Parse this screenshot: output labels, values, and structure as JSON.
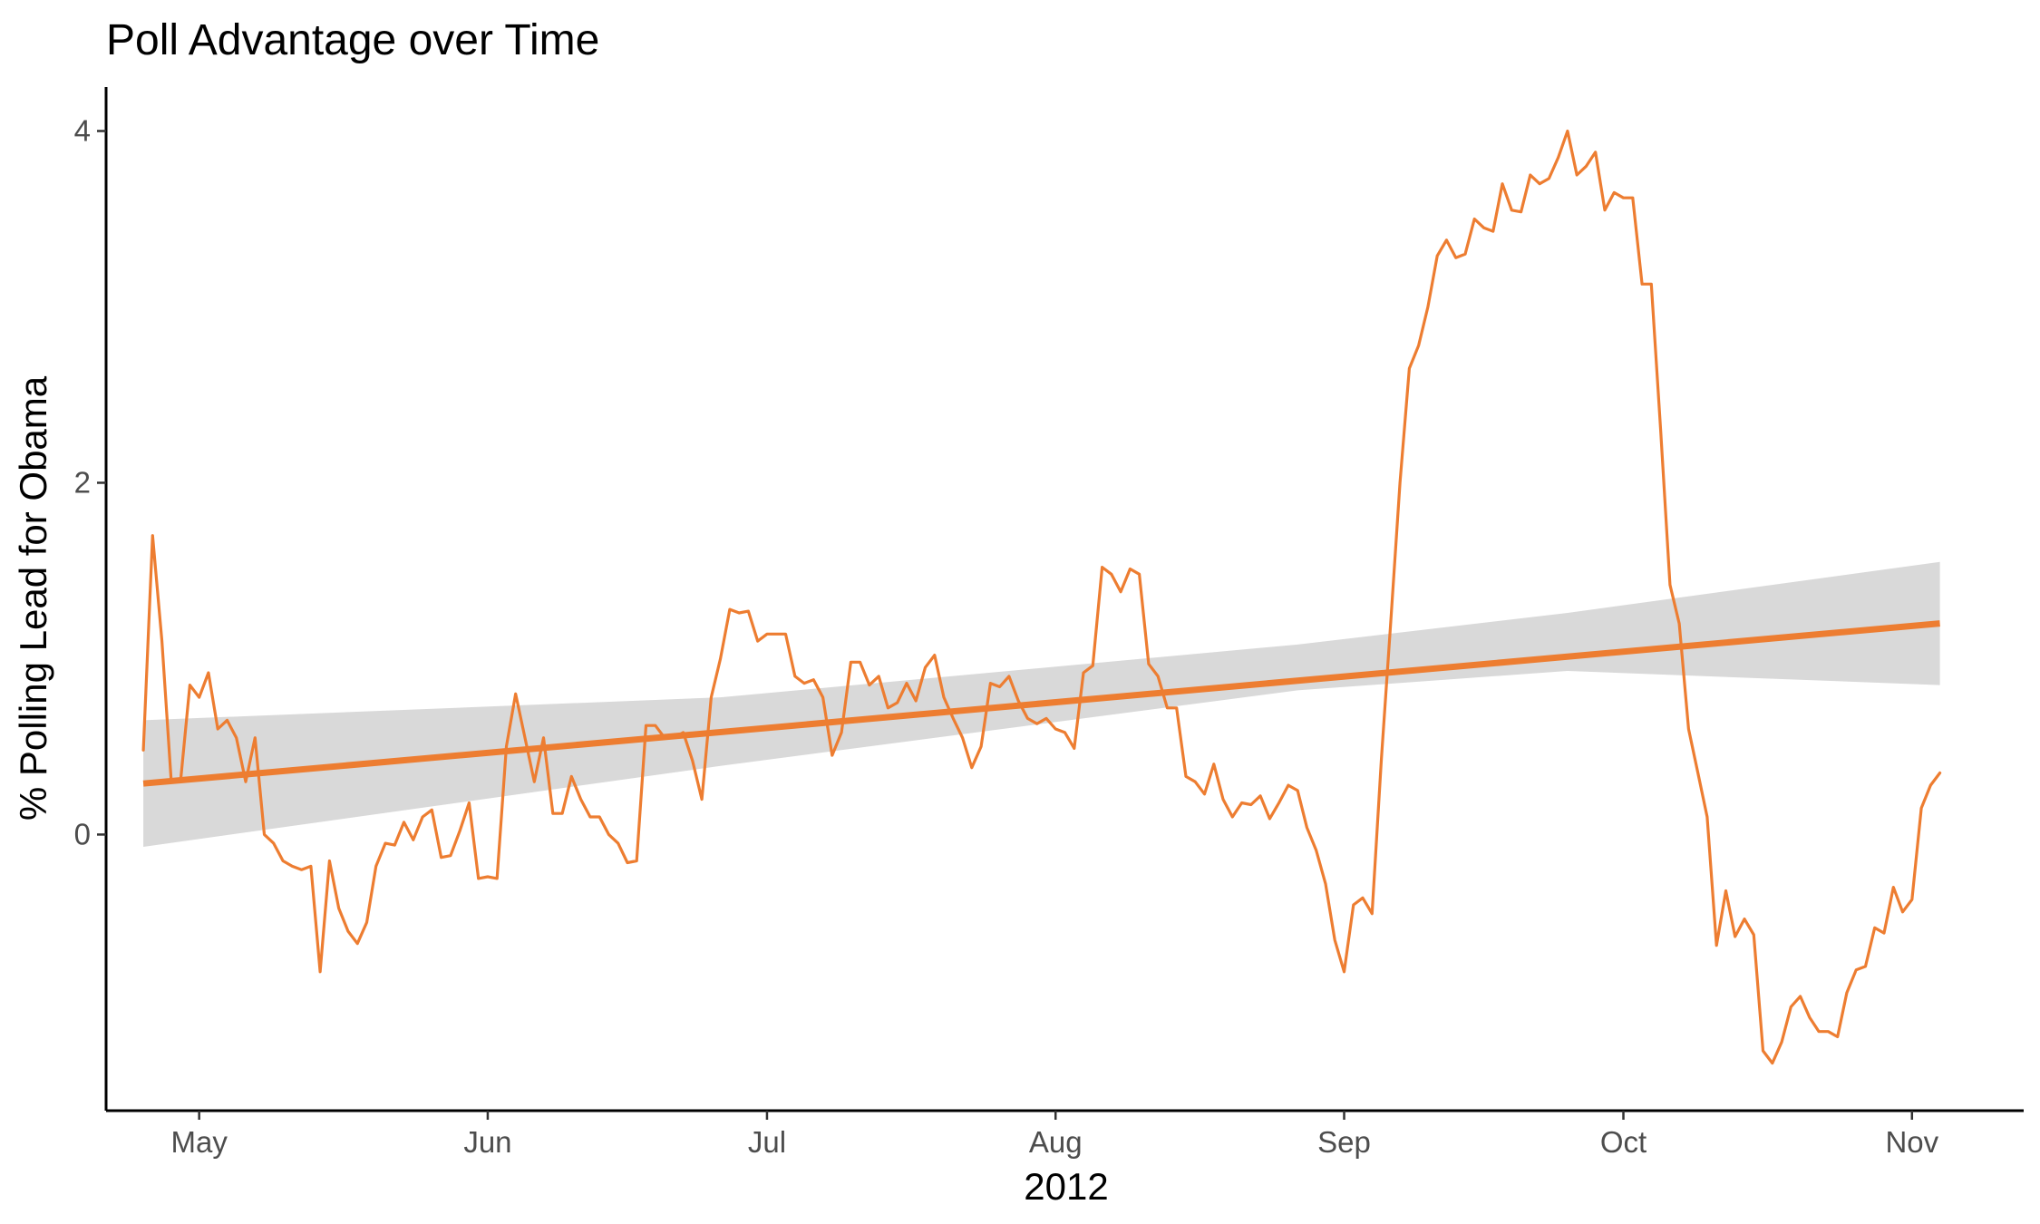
{
  "chart_data": {
    "type": "line",
    "title": "Poll Advantage over Time",
    "xlabel": "2012",
    "ylabel": "% Polling Lead for Obama",
    "x_ticks": [
      {
        "date": "2012-05-01",
        "label": "May"
      },
      {
        "date": "2012-06-01",
        "label": "Jun"
      },
      {
        "date": "2012-07-01",
        "label": "Jul"
      },
      {
        "date": "2012-08-01",
        "label": "Aug"
      },
      {
        "date": "2012-09-01",
        "label": "Sep"
      },
      {
        "date": "2012-10-01",
        "label": "Oct"
      },
      {
        "date": "2012-11-01",
        "label": "Nov"
      }
    ],
    "y_ticks": [
      0,
      2,
      4
    ],
    "xlim": [
      "2012-04-21",
      "2012-11-13"
    ],
    "ylim": [
      -1.57,
      4.25
    ],
    "grid": false,
    "legend": "none",
    "colors": {
      "line": "#ED7D31",
      "trend": "#ED7D31",
      "ribbon": "#D9D9D9"
    },
    "series": [
      {
        "type": "line",
        "points": [
          [
            "2012-04-25",
            0.48
          ],
          [
            "2012-04-26",
            1.7
          ],
          [
            "2012-04-27",
            1.1
          ],
          [
            "2012-04-28",
            0.3
          ],
          [
            "2012-04-29",
            0.3
          ],
          [
            "2012-04-30",
            0.85
          ],
          [
            "2012-05-01",
            0.78
          ],
          [
            "2012-05-02",
            0.92
          ],
          [
            "2012-05-03",
            0.6
          ],
          [
            "2012-05-04",
            0.65
          ],
          [
            "2012-05-05",
            0.55
          ],
          [
            "2012-05-06",
            0.3
          ],
          [
            "2012-05-07",
            0.55
          ],
          [
            "2012-05-08",
            0.0
          ],
          [
            "2012-05-09",
            -0.05
          ],
          [
            "2012-05-10",
            -0.15
          ],
          [
            "2012-05-11",
            -0.18
          ],
          [
            "2012-05-12",
            -0.2
          ],
          [
            "2012-05-13",
            -0.18
          ],
          [
            "2012-05-14",
            -0.78
          ],
          [
            "2012-05-15",
            -0.15
          ],
          [
            "2012-05-16",
            -0.42
          ],
          [
            "2012-05-17",
            -0.55
          ],
          [
            "2012-05-18",
            -0.62
          ],
          [
            "2012-05-19",
            -0.5
          ],
          [
            "2012-05-20",
            -0.18
          ],
          [
            "2012-05-21",
            -0.05
          ],
          [
            "2012-05-22",
            -0.06
          ],
          [
            "2012-05-23",
            0.07
          ],
          [
            "2012-05-24",
            -0.03
          ],
          [
            "2012-05-25",
            0.1
          ],
          [
            "2012-05-26",
            0.14
          ],
          [
            "2012-05-27",
            -0.13
          ],
          [
            "2012-05-28",
            -0.12
          ],
          [
            "2012-05-29",
            0.02
          ],
          [
            "2012-05-30",
            0.18
          ],
          [
            "2012-05-31",
            -0.25
          ],
          [
            "2012-06-01",
            -0.24
          ],
          [
            "2012-06-02",
            -0.25
          ],
          [
            "2012-06-03",
            0.5
          ],
          [
            "2012-06-04",
            0.8
          ],
          [
            "2012-06-05",
            0.55
          ],
          [
            "2012-06-06",
            0.3
          ],
          [
            "2012-06-07",
            0.55
          ],
          [
            "2012-06-08",
            0.12
          ],
          [
            "2012-06-09",
            0.12
          ],
          [
            "2012-06-10",
            0.33
          ],
          [
            "2012-06-11",
            0.2
          ],
          [
            "2012-06-12",
            0.1
          ],
          [
            "2012-06-13",
            0.1
          ],
          [
            "2012-06-14",
            0.0
          ],
          [
            "2012-06-15",
            -0.05
          ],
          [
            "2012-06-16",
            -0.16
          ],
          [
            "2012-06-17",
            -0.15
          ],
          [
            "2012-06-18",
            0.62
          ],
          [
            "2012-06-19",
            0.62
          ],
          [
            "2012-06-20",
            0.55
          ],
          [
            "2012-06-21",
            0.55
          ],
          [
            "2012-06-22",
            0.58
          ],
          [
            "2012-06-23",
            0.42
          ],
          [
            "2012-06-24",
            0.2
          ],
          [
            "2012-06-25",
            0.78
          ],
          [
            "2012-06-26",
            1.0
          ],
          [
            "2012-06-27",
            1.28
          ],
          [
            "2012-06-28",
            1.26
          ],
          [
            "2012-06-29",
            1.27
          ],
          [
            "2012-06-30",
            1.1
          ],
          [
            "2012-07-01",
            1.14
          ],
          [
            "2012-07-02",
            1.14
          ],
          [
            "2012-07-03",
            1.14
          ],
          [
            "2012-07-04",
            0.9
          ],
          [
            "2012-07-05",
            0.86
          ],
          [
            "2012-07-06",
            0.88
          ],
          [
            "2012-07-07",
            0.78
          ],
          [
            "2012-07-08",
            0.45
          ],
          [
            "2012-07-09",
            0.58
          ],
          [
            "2012-07-10",
            0.98
          ],
          [
            "2012-07-11",
            0.98
          ],
          [
            "2012-07-12",
            0.85
          ],
          [
            "2012-07-13",
            0.9
          ],
          [
            "2012-07-14",
            0.72
          ],
          [
            "2012-07-15",
            0.75
          ],
          [
            "2012-07-16",
            0.86
          ],
          [
            "2012-07-17",
            0.76
          ],
          [
            "2012-07-18",
            0.95
          ],
          [
            "2012-07-19",
            1.02
          ],
          [
            "2012-07-20",
            0.78
          ],
          [
            "2012-07-21",
            0.66
          ],
          [
            "2012-07-22",
            0.55
          ],
          [
            "2012-07-23",
            0.38
          ],
          [
            "2012-07-24",
            0.5
          ],
          [
            "2012-07-25",
            0.86
          ],
          [
            "2012-07-26",
            0.84
          ],
          [
            "2012-07-27",
            0.9
          ],
          [
            "2012-07-28",
            0.76
          ],
          [
            "2012-07-29",
            0.66
          ],
          [
            "2012-07-30",
            0.63
          ],
          [
            "2012-07-31",
            0.66
          ],
          [
            "2012-08-01",
            0.6
          ],
          [
            "2012-08-02",
            0.58
          ],
          [
            "2012-08-03",
            0.49
          ],
          [
            "2012-08-04",
            0.92
          ],
          [
            "2012-08-05",
            0.96
          ],
          [
            "2012-08-06",
            1.52
          ],
          [
            "2012-08-07",
            1.48
          ],
          [
            "2012-08-08",
            1.38
          ],
          [
            "2012-08-09",
            1.51
          ],
          [
            "2012-08-10",
            1.48
          ],
          [
            "2012-08-11",
            0.97
          ],
          [
            "2012-08-12",
            0.9
          ],
          [
            "2012-08-13",
            0.72
          ],
          [
            "2012-08-14",
            0.72
          ],
          [
            "2012-08-15",
            0.33
          ],
          [
            "2012-08-16",
            0.3
          ],
          [
            "2012-08-17",
            0.23
          ],
          [
            "2012-08-18",
            0.4
          ],
          [
            "2012-08-19",
            0.2
          ],
          [
            "2012-08-20",
            0.1
          ],
          [
            "2012-08-21",
            0.18
          ],
          [
            "2012-08-22",
            0.17
          ],
          [
            "2012-08-23",
            0.22
          ],
          [
            "2012-08-24",
            0.09
          ],
          [
            "2012-08-25",
            0.18
          ],
          [
            "2012-08-26",
            0.28
          ],
          [
            "2012-08-27",
            0.25
          ],
          [
            "2012-08-28",
            0.04
          ],
          [
            "2012-08-29",
            -0.09
          ],
          [
            "2012-08-30",
            -0.28
          ],
          [
            "2012-08-31",
            -0.6
          ],
          [
            "2012-09-01",
            -0.78
          ],
          [
            "2012-09-02",
            -0.4
          ],
          [
            "2012-09-03",
            -0.36
          ],
          [
            "2012-09-04",
            -0.45
          ],
          [
            "2012-09-05",
            0.43
          ],
          [
            "2012-09-06",
            1.2
          ],
          [
            "2012-09-07",
            2.0
          ],
          [
            "2012-09-08",
            2.65
          ],
          [
            "2012-09-09",
            2.78
          ],
          [
            "2012-09-10",
            3.0
          ],
          [
            "2012-09-11",
            3.29
          ],
          [
            "2012-09-12",
            3.38
          ],
          [
            "2012-09-13",
            3.28
          ],
          [
            "2012-09-14",
            3.3
          ],
          [
            "2012-09-15",
            3.5
          ],
          [
            "2012-09-16",
            3.45
          ],
          [
            "2012-09-17",
            3.43
          ],
          [
            "2012-09-18",
            3.7
          ],
          [
            "2012-09-19",
            3.55
          ],
          [
            "2012-09-20",
            3.54
          ],
          [
            "2012-09-21",
            3.75
          ],
          [
            "2012-09-22",
            3.7
          ],
          [
            "2012-09-23",
            3.73
          ],
          [
            "2012-09-24",
            3.85
          ],
          [
            "2012-09-25",
            4.0
          ],
          [
            "2012-09-26",
            3.75
          ],
          [
            "2012-09-27",
            3.8
          ],
          [
            "2012-09-28",
            3.88
          ],
          [
            "2012-09-29",
            3.55
          ],
          [
            "2012-09-30",
            3.65
          ],
          [
            "2012-10-01",
            3.62
          ],
          [
            "2012-10-02",
            3.62
          ],
          [
            "2012-10-03",
            3.13
          ],
          [
            "2012-10-04",
            3.13
          ],
          [
            "2012-10-05",
            2.3
          ],
          [
            "2012-10-06",
            1.42
          ],
          [
            "2012-10-07",
            1.2
          ],
          [
            "2012-10-08",
            0.6
          ],
          [
            "2012-10-09",
            0.35
          ],
          [
            "2012-10-10",
            0.1
          ],
          [
            "2012-10-11",
            -0.63
          ],
          [
            "2012-10-12",
            -0.32
          ],
          [
            "2012-10-13",
            -0.58
          ],
          [
            "2012-10-14",
            -0.48
          ],
          [
            "2012-10-15",
            -0.57
          ],
          [
            "2012-10-16",
            -1.23
          ],
          [
            "2012-10-17",
            -1.3
          ],
          [
            "2012-10-18",
            -1.18
          ],
          [
            "2012-10-19",
            -0.98
          ],
          [
            "2012-10-20",
            -0.92
          ],
          [
            "2012-10-21",
            -1.04
          ],
          [
            "2012-10-22",
            -1.12
          ],
          [
            "2012-10-23",
            -1.12
          ],
          [
            "2012-10-24",
            -1.15
          ],
          [
            "2012-10-25",
            -0.9
          ],
          [
            "2012-10-26",
            -0.77
          ],
          [
            "2012-10-27",
            -0.75
          ],
          [
            "2012-10-28",
            -0.53
          ],
          [
            "2012-10-29",
            -0.56
          ],
          [
            "2012-10-30",
            -0.3
          ],
          [
            "2012-10-31",
            -0.44
          ],
          [
            "2012-11-01",
            -0.37
          ],
          [
            "2012-11-02",
            0.15
          ],
          [
            "2012-11-03",
            0.28
          ],
          [
            "2012-11-04",
            0.35
          ]
        ]
      },
      {
        "type": "smooth",
        "method": "linear",
        "points": [
          [
            "2012-04-25",
            0.29
          ],
          [
            "2012-11-04",
            1.2
          ]
        ],
        "confidence_band": {
          "lower": [
            [
              "2012-04-25",
              -0.07
            ],
            [
              "2012-06-26",
              0.39
            ],
            [
              "2012-08-27",
              0.82
            ],
            [
              "2012-09-25",
              0.93
            ],
            [
              "2012-11-04",
              0.85
            ]
          ],
          "upper": [
            [
              "2012-04-25",
              0.65
            ],
            [
              "2012-06-26",
              0.78
            ],
            [
              "2012-08-27",
              1.08
            ],
            [
              "2012-09-25",
              1.26
            ],
            [
              "2012-11-04",
              1.55
            ]
          ]
        }
      }
    ]
  }
}
